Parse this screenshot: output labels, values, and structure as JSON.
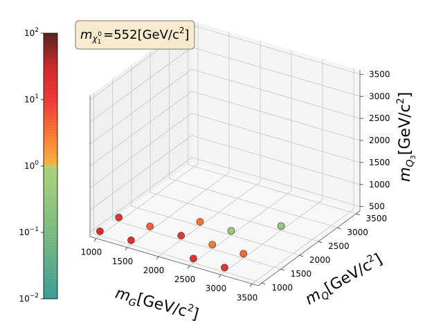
{
  "chart_data": {
    "type": "scatter3d",
    "annotation": {
      "prefix": "m",
      "subscript": "χ",
      "sub_index": "1",
      "sup_index": "0",
      "value_text": "=552[GeV/c",
      "power": "2",
      "close": "]"
    },
    "axes": {
      "x": {
        "label_main": "m",
        "label_sub": "G",
        "label_unit": "[GeV/c",
        "label_pow": "2",
        "label_close": "]",
        "range": [
          900,
          3600
        ],
        "ticks": [
          "1000",
          "1500",
          "2000",
          "2500",
          "3000",
          "3500"
        ]
      },
      "y": {
        "label_main": "m",
        "label_sub": "Q",
        "label_unit": "[GeV/c",
        "label_pow": "2",
        "label_close": "]",
        "range": [
          900,
          3600
        ],
        "ticks": [
          "1000",
          "1500",
          "2000",
          "2500",
          "3000",
          "3500"
        ]
      },
      "z": {
        "label_main": "m",
        "label_sub": "Q",
        "label_subsub": "3",
        "label_unit": "[GeV/c",
        "label_pow": "2",
        "label_close": "]",
        "range": [
          400,
          3600
        ],
        "ticks": [
          "500",
          "1000",
          "1500",
          "2000",
          "2500",
          "3000",
          "3500"
        ]
      }
    },
    "grid": true,
    "colorbar": {
      "scale": "log",
      "range": [
        0.01,
        100
      ],
      "ticks": [
        {
          "base": "10",
          "exp": "−2"
        },
        {
          "base": "10",
          "exp": "−1"
        },
        {
          "base": "10",
          "exp": "0"
        },
        {
          "base": "10",
          "exp": "1"
        },
        {
          "base": "10",
          "exp": "2"
        }
      ],
      "colormap": [
        {
          "v": 0.01,
          "color": "#3d9e96"
        },
        {
          "v": 0.1,
          "color": "#7ebd84"
        },
        {
          "v": 1.0,
          "color": "#aed57a"
        },
        {
          "v": 1.0001,
          "color": "#f5b840"
        },
        {
          "v": 3.0,
          "color": "#fb7a35"
        },
        {
          "v": 10,
          "color": "#f03a3a"
        },
        {
          "v": 30,
          "color": "#d02a2a"
        },
        {
          "v": 100,
          "color": "#5a2424"
        }
      ]
    },
    "points": [
      {
        "x": 1000,
        "y": 1000,
        "z": 500,
        "value": 25
      },
      {
        "x": 1500,
        "y": 1000,
        "z": 500,
        "value": 20
      },
      {
        "x": 2500,
        "y": 1000,
        "z": 500,
        "value": 18
      },
      {
        "x": 3000,
        "y": 1000,
        "z": 500,
        "value": 16
      },
      {
        "x": 3000,
        "y": 1500,
        "z": 500,
        "value": 4
      },
      {
        "x": 3000,
        "y": 2500,
        "z": 500,
        "value": 0.3
      },
      {
        "x": 1000,
        "y": 1500,
        "z": 500,
        "value": 15
      },
      {
        "x": 1500,
        "y": 1500,
        "z": 500,
        "value": 5
      },
      {
        "x": 2000,
        "y": 1500,
        "z": 500,
        "value": 14
      },
      {
        "x": 2500,
        "y": 1500,
        "z": 500,
        "value": 3
      },
      {
        "x": 2500,
        "y": 2000,
        "z": 500,
        "value": 0.35
      },
      {
        "x": 2000,
        "y": 2000,
        "z": 500,
        "value": 3.5
      }
    ]
  }
}
